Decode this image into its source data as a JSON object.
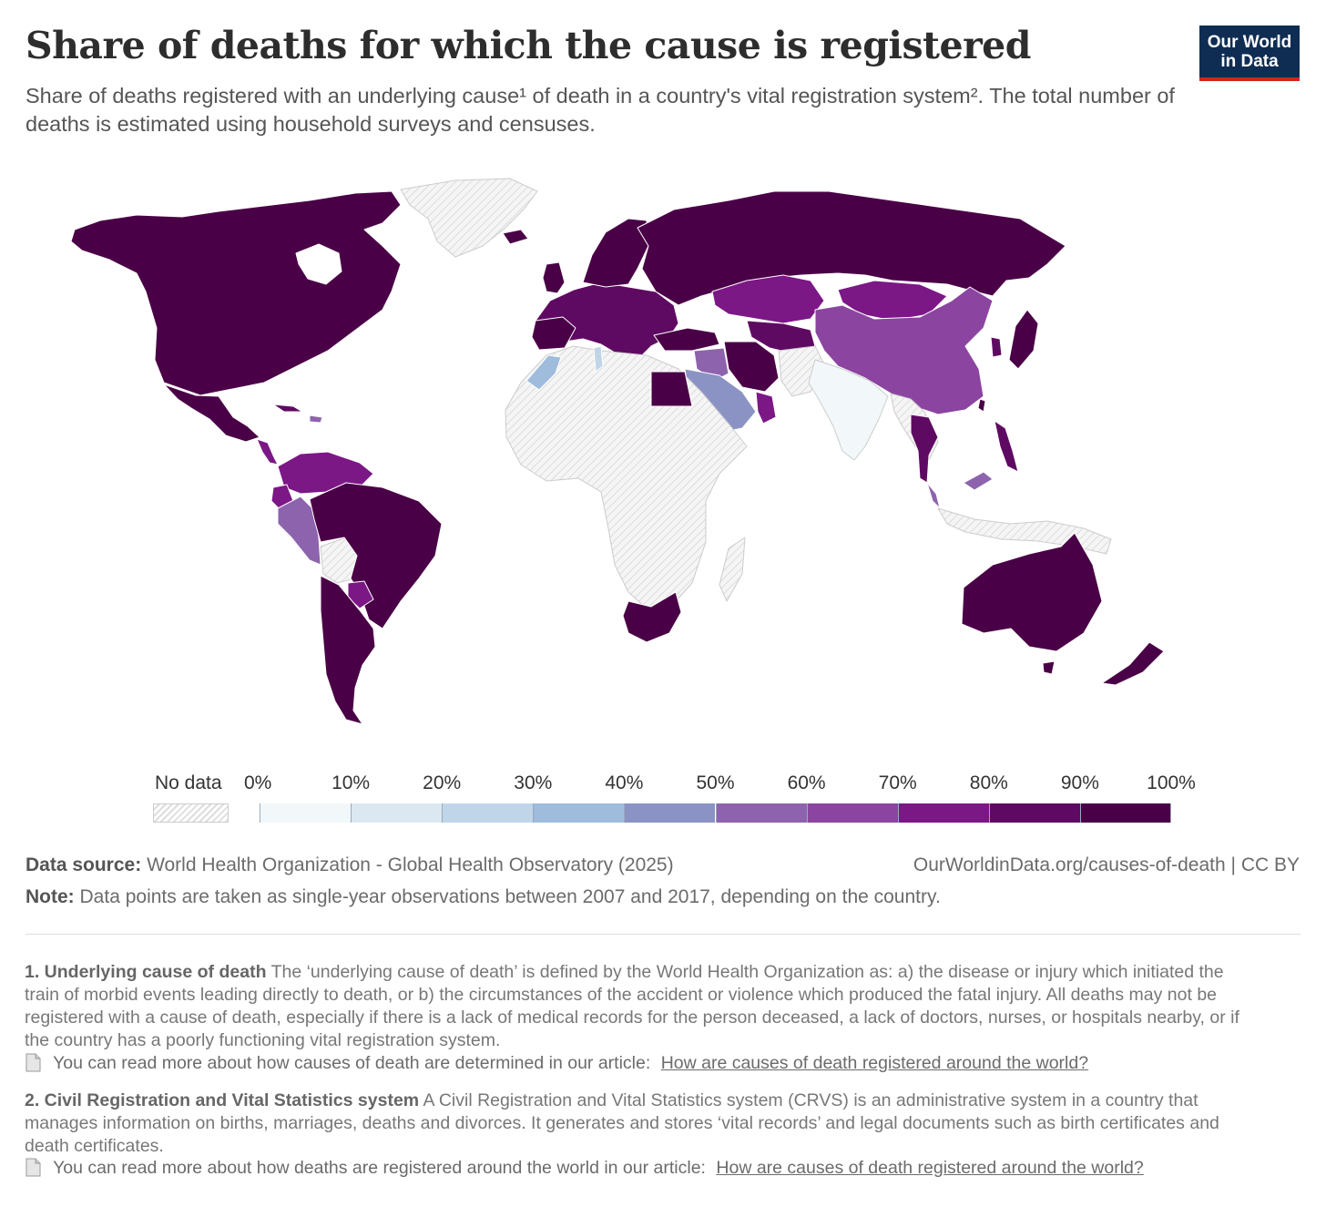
{
  "header": {
    "title": "Share of deaths for which the cause is registered",
    "subtitle": "Share of deaths registered with an underlying cause¹ of death in a country's vital registration system². The total number of deaths is estimated using household surveys and censuses.",
    "logo_line1": "Our World",
    "logo_line2": "in Data"
  },
  "legend": {
    "no_data": "No data",
    "ticks": [
      "0%",
      "10%",
      "20%",
      "30%",
      "40%",
      "50%",
      "60%",
      "70%",
      "80%",
      "90%",
      "100%"
    ],
    "colors": [
      "#f2f8fa",
      "#dce8f1",
      "#c1d5e8",
      "#a0bcdd",
      "#8a93c4",
      "#8e63ad",
      "#8b45a0",
      "#7c1786",
      "#5f0a62",
      "#4a0046"
    ]
  },
  "map_colors": {
    "ocean": "#ffffff",
    "no_data_fill": "#f3f3f3",
    "border": "#ffffff"
  },
  "footer": {
    "source_label": "Data source:",
    "source_text": "World Health Organization - Global Health Observatory (2025)",
    "url": "OurWorldinData.org/causes-of-death",
    "license": "| CC BY",
    "note_label": "Note:",
    "note_text": "Data points are taken as single-year observations between 2007 and 2017, depending on the country."
  },
  "footnotes": [
    {
      "label": "1. Underlying cause of death",
      "text": "The ‘underlying cause of death’ is defined by the World Health Organization as: a) the disease or injury which initiated the train of morbid events leading directly to death, or b) the circumstances of the accident or violence which produced the fatal injury. All deaths may not be registered with a cause of death, especially if there is a lack of medical records for the person deceased, a lack of doctors, nurses, or hospitals nearby, or if the country has a poorly functioning vital registration system.",
      "more_text": "You can read more about how causes of death are determined in our article:",
      "link_text": "How are causes of death registered around the world?"
    },
    {
      "label": "2. Civil Registration and Vital Statistics system",
      "text": "A Civil Registration and Vital Statistics system (CRVS) is an administrative system in a country that manages information on births, marriages, deaths and divorces. It generates and stores ‘vital records’ and legal documents such as birth certificates and death certificates.",
      "more_text": "You can read more about how deaths are registered around the world in our article:",
      "link_text": "How are causes of death registered around the world?"
    }
  ]
}
